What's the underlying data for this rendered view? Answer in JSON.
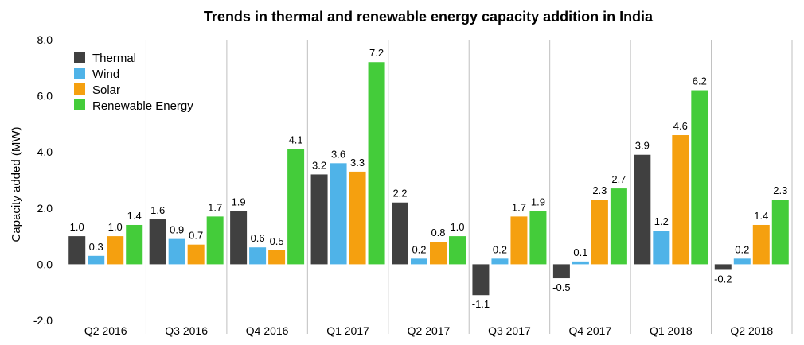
{
  "chart_data": {
    "type": "bar",
    "title": "Trends in thermal and renewable energy capacity addition in India",
    "xlabel": "",
    "ylabel": "Capacity added (MW)",
    "ylim": [
      -2.0,
      8.0
    ],
    "yticks": [
      "8.0",
      "6.0",
      "4.0",
      "2.0",
      "0.0",
      "-2.0"
    ],
    "ytick_values": [
      8,
      6,
      4,
      2,
      0,
      -2
    ],
    "grid": false,
    "legend_position": "top-left",
    "categories": [
      "Q2 2016",
      "Q3 2016",
      "Q4 2016",
      "Q1 2017",
      "Q2 2017",
      "Q3 2017",
      "Q4 2017",
      "Q1 2018",
      "Q2 2018"
    ],
    "series": [
      {
        "name": "Thermal",
        "color": "#404040",
        "values": [
          1.0,
          1.6,
          1.9,
          3.2,
          2.2,
          -1.1,
          -0.5,
          3.9,
          -0.2
        ],
        "labels": [
          "1.0",
          "1.6",
          "1.9",
          "3.2",
          "2.2",
          "-1.1",
          "-0.5",
          "3.9",
          "-0.2"
        ]
      },
      {
        "name": "Wind",
        "color": "#4FB3E8",
        "values": [
          0.3,
          0.9,
          0.6,
          3.6,
          0.2,
          0.2,
          0.1,
          1.2,
          0.2
        ],
        "labels": [
          "0.3",
          "0.9",
          "0.6",
          "3.6",
          "0.2",
          "0.2",
          "0.1",
          "1.2",
          "0.2"
        ]
      },
      {
        "name": "Solar",
        "color": "#F5A00F",
        "values": [
          1.0,
          0.7,
          0.5,
          3.3,
          0.8,
          1.7,
          2.3,
          4.6,
          1.4
        ],
        "labels": [
          "1.0",
          "0.7",
          "0.5",
          "3.3",
          "0.8",
          "1.7",
          "2.3",
          "4.6",
          "1.4"
        ]
      },
      {
        "name": "Renewable Energy",
        "color": "#44CC3A",
        "values": [
          1.4,
          1.7,
          4.1,
          7.2,
          1.0,
          1.9,
          2.7,
          6.2,
          2.3
        ],
        "labels": [
          "1.4",
          "1.7",
          "4.1",
          "7.2",
          "1.0",
          "1.9",
          "2.7",
          "6.2",
          "2.3"
        ]
      }
    ],
    "separator_color": "#BFBFBF"
  }
}
